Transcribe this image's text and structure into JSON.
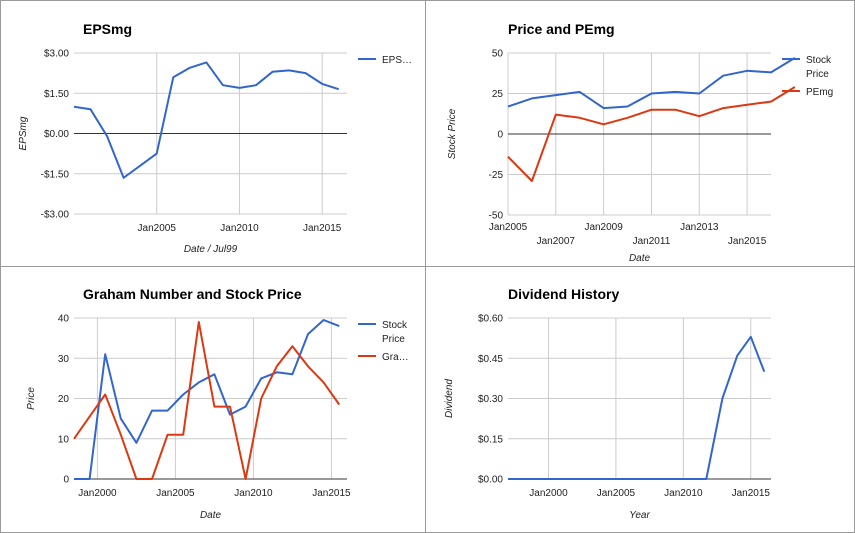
{
  "chart_data": [
    {
      "type": "line",
      "title": "EPSmg",
      "xlabel": "Date / Jul99",
      "ylabel": "EPSmg",
      "ylim": [
        -3,
        3
      ],
      "yticks": [
        {
          "v": 3,
          "label": "$3.00"
        },
        {
          "v": 1.5,
          "label": "$1.50"
        },
        {
          "v": 0,
          "label": "$0.00"
        },
        {
          "v": -1.5,
          "label": "-$1.50"
        },
        {
          "v": -3,
          "label": "-$3.00"
        }
      ],
      "xlim": [
        2000,
        2016.5
      ],
      "xticks": [
        {
          "v": 2005,
          "label": "Jan2005"
        },
        {
          "v": 2010,
          "label": "Jan2010"
        },
        {
          "v": 2015,
          "label": "Jan2015"
        }
      ],
      "legend": "right",
      "series": [
        {
          "name": "EPS…",
          "color": "#3366cc",
          "x": [
            2000,
            2001,
            2002,
            2003,
            2004,
            2005,
            2006,
            2007,
            2008,
            2009,
            2010,
            2011,
            2012,
            2013,
            2014,
            2015,
            2016
          ],
          "y": [
            1.0,
            0.9,
            -0.1,
            -1.65,
            -1.2,
            -0.75,
            2.1,
            2.45,
            2.65,
            1.8,
            1.7,
            1.8,
            2.3,
            2.35,
            2.25,
            1.85,
            1.65
          ]
        }
      ]
    },
    {
      "type": "line",
      "title": "Price and PEmg",
      "xlabel": "Date",
      "ylabel": "Stock Price",
      "ylim": [
        -50,
        50
      ],
      "yticks": [
        {
          "v": 50,
          "label": "50"
        },
        {
          "v": 25,
          "label": "25"
        },
        {
          "v": 0,
          "label": "0"
        },
        {
          "v": -25,
          "label": "-25"
        },
        {
          "v": -50,
          "label": "-50"
        }
      ],
      "xlim": [
        2005,
        2016
      ],
      "xticks": [
        {
          "v": 2005,
          "label": "Jan2005",
          "row": 0
        },
        {
          "v": 2007,
          "label": "Jan2007",
          "row": 1
        },
        {
          "v": 2009,
          "label": "Jan2009",
          "row": 0
        },
        {
          "v": 2011,
          "label": "Jan2011",
          "row": 1
        },
        {
          "v": 2013,
          "label": "Jan2013",
          "row": 0
        },
        {
          "v": 2015,
          "label": "Jan2015",
          "row": 1
        }
      ],
      "legend": "right",
      "series": [
        {
          "name": "Stock Price",
          "color": "#3366cc",
          "x": [
            2005,
            2006,
            2007,
            2008,
            2009,
            2010,
            2011,
            2012,
            2013,
            2014,
            2015,
            2016,
            2017
          ],
          "y": [
            17,
            22,
            24,
            26,
            16,
            17,
            25,
            26,
            25,
            36,
            39,
            38,
            47
          ]
        },
        {
          "name": "PEmg",
          "color": "#dc3912",
          "x": [
            2005,
            2006,
            2007,
            2008,
            2009,
            2010,
            2011,
            2012,
            2013,
            2014,
            2015,
            2016,
            2017
          ],
          "y": [
            -14,
            -29,
            12,
            10,
            6,
            10,
            15,
            15,
            11,
            16,
            18,
            20,
            29
          ]
        }
      ]
    },
    {
      "type": "line",
      "title": "Graham Number and Stock Price",
      "xlabel": "Date",
      "ylabel": "Price",
      "ylim": [
        0,
        40
      ],
      "yticks": [
        {
          "v": 40,
          "label": "40"
        },
        {
          "v": 30,
          "label": "30"
        },
        {
          "v": 20,
          "label": "20"
        },
        {
          "v": 10,
          "label": "10"
        },
        {
          "v": 0,
          "label": "0"
        }
      ],
      "xlim": [
        1998.5,
        2016
      ],
      "xticks": [
        {
          "v": 2000,
          "label": "Jan2000"
        },
        {
          "v": 2005,
          "label": "Jan2005"
        },
        {
          "v": 2010,
          "label": "Jan2010"
        },
        {
          "v": 2015,
          "label": "Jan2015"
        }
      ],
      "legend": "right",
      "series": [
        {
          "name": "Stock Price",
          "color": "#3366cc",
          "x": [
            1998.5,
            1999.5,
            2000.5,
            2001.5,
            2002.5,
            2003.5,
            2004.5,
            2005.5,
            2006.5,
            2007.5,
            2008.5,
            2009.5,
            2010.5,
            2011.5,
            2012.5,
            2013.5,
            2014.5,
            2015.5
          ],
          "y": [
            0,
            0,
            31,
            15,
            9,
            17,
            17,
            21,
            24,
            26,
            16,
            18,
            25,
            26.5,
            26,
            36,
            39.5,
            38
          ]
        },
        {
          "name": "Gra…",
          "color": "#dc3912",
          "x": [
            1998.5,
            1999.5,
            2000.5,
            2001.5,
            2002.5,
            2003.5,
            2004.5,
            2005.5,
            2006.5,
            2007.5,
            2008.5,
            2009.5,
            2010.5,
            2011.5,
            2012.5,
            2013.5,
            2014.5,
            2015.5
          ],
          "y": [
            10,
            15.5,
            21,
            11,
            0,
            0,
            11,
            11,
            39,
            18,
            18,
            0,
            20,
            28,
            33,
            28,
            24,
            18.5
          ]
        }
      ]
    },
    {
      "type": "line",
      "title": "Dividend History",
      "xlabel": "Year",
      "ylabel": "Dividend",
      "ylim": [
        0,
        0.6
      ],
      "yticks": [
        {
          "v": 0.6,
          "label": "$0.60"
        },
        {
          "v": 0.45,
          "label": "$0.45"
        },
        {
          "v": 0.3,
          "label": "$0.30"
        },
        {
          "v": 0.15,
          "label": "$0.15"
        },
        {
          "v": 0,
          "label": "$0.00"
        }
      ],
      "xlim": [
        1997,
        2016.5
      ],
      "xticks": [
        {
          "v": 2000,
          "label": "Jan2000"
        },
        {
          "v": 2005,
          "label": "Jan2005"
        },
        {
          "v": 2010,
          "label": "Jan2010"
        },
        {
          "v": 2015,
          "label": "Jan2015"
        }
      ],
      "legend": "none",
      "series": [
        {
          "name": "",
          "color": "#3366cc",
          "x": [
            1997,
            2011.7,
            2012.9,
            2014,
            2015,
            2016
          ],
          "y": [
            0,
            0,
            0.3,
            0.46,
            0.53,
            0.4
          ]
        }
      ]
    }
  ]
}
